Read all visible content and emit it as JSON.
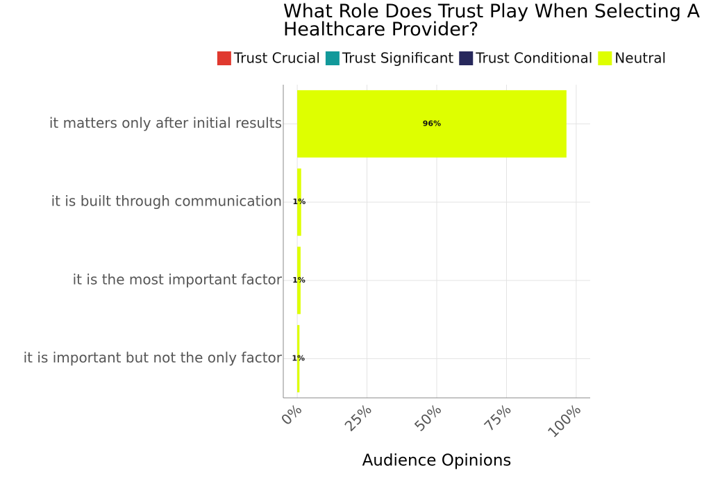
{
  "chart_data": {
    "type": "stacked-bar-horizontal",
    "title": "What Role Does Trust Play When Selecting A Healthcare Provider?",
    "x_label": "Audience Opinions",
    "categories": [
      "it matters only after initial results",
      "it is built through communication",
      "it is the most important factor",
      "it is important but not the only factor"
    ],
    "series": [
      {
        "name": "Trust Crucial",
        "color": "#e0392f",
        "values": [
          0,
          0,
          0,
          0
        ]
      },
      {
        "name": "Trust Significant",
        "color": "#12999a",
        "values": [
          0,
          0,
          0,
          0
        ]
      },
      {
        "name": "Trust Conditional",
        "color": "#27285c",
        "values": [
          0,
          0,
          0,
          0
        ]
      },
      {
        "name": "Neutral",
        "color": "#deff00",
        "values": [
          96.5,
          1.4,
          1.2,
          0.8
        ],
        "value_labels": [
          "96%",
          "1%",
          "1%",
          "1%"
        ]
      }
    ],
    "xlim": [
      -5,
      105
    ],
    "xticks": [
      {
        "value": 0,
        "label": "0%"
      },
      {
        "value": 25,
        "label": "25%"
      },
      {
        "value": 50,
        "label": "50%"
      },
      {
        "value": 75,
        "label": "75%"
      },
      {
        "value": 100,
        "label": "100%"
      }
    ],
    "grid": true
  }
}
